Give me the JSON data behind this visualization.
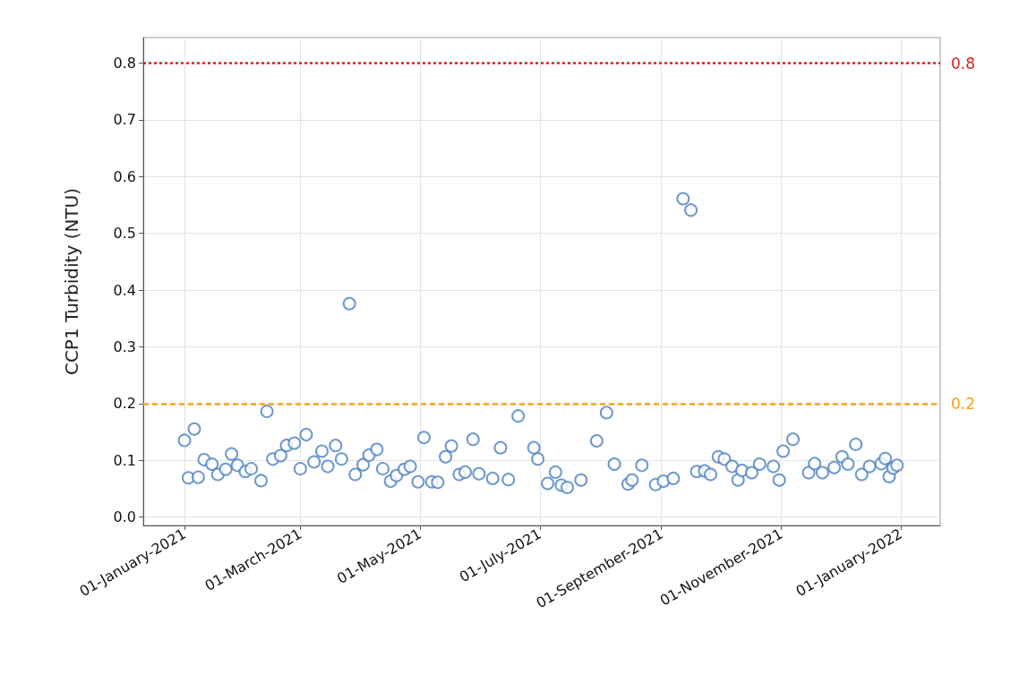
{
  "chart_data": {
    "type": "scatter",
    "ylabel": "CCP1 Turbidity (NTU)",
    "x": [
      "2021-01-01",
      "2021-01-03",
      "2021-01-06",
      "2021-01-08",
      "2021-01-11",
      "2021-01-15",
      "2021-01-18",
      "2021-01-22",
      "2021-01-25",
      "2021-01-28",
      "2021-02-01",
      "2021-02-04",
      "2021-02-09",
      "2021-02-12",
      "2021-02-15",
      "2021-02-19",
      "2021-02-22",
      "2021-02-26",
      "2021-03-01",
      "2021-03-04",
      "2021-03-08",
      "2021-03-12",
      "2021-03-15",
      "2021-03-19",
      "2021-03-22",
      "2021-03-26",
      "2021-03-29",
      "2021-04-02",
      "2021-04-05",
      "2021-04-09",
      "2021-04-12",
      "2021-04-16",
      "2021-04-19",
      "2021-04-23",
      "2021-04-26",
      "2021-04-30",
      "2021-05-03",
      "2021-05-07",
      "2021-05-10",
      "2021-05-14",
      "2021-05-17",
      "2021-05-21",
      "2021-05-24",
      "2021-05-28",
      "2021-05-31",
      "2021-06-07",
      "2021-06-11",
      "2021-06-15",
      "2021-06-20",
      "2021-06-28",
      "2021-06-30",
      "2021-07-05",
      "2021-07-09",
      "2021-07-12",
      "2021-07-15",
      "2021-07-22",
      "2021-07-30",
      "2021-08-04",
      "2021-08-08",
      "2021-08-15",
      "2021-08-17",
      "2021-08-22",
      "2021-08-29",
      "2021-09-02",
      "2021-09-07",
      "2021-09-12",
      "2021-09-16",
      "2021-09-19",
      "2021-09-23",
      "2021-09-26",
      "2021-09-30",
      "2021-10-03",
      "2021-10-07",
      "2021-10-10",
      "2021-10-12",
      "2021-10-17",
      "2021-10-21",
      "2021-10-28",
      "2021-10-31",
      "2021-11-02",
      "2021-11-07",
      "2021-11-15",
      "2021-11-18",
      "2021-11-22",
      "2021-11-28",
      "2021-12-02",
      "2021-12-05",
      "2021-12-09",
      "2021-12-12",
      "2021-12-16",
      "2021-12-22",
      "2021-12-24",
      "2021-12-26",
      "2021-12-28",
      "2021-12-30"
    ],
    "series": [
      {
        "color": "#4a7fc1",
        "values": [
          0.135,
          0.069,
          0.155,
          0.07,
          0.101,
          0.093,
          0.075,
          0.084,
          0.111,
          0.091,
          0.08,
          0.085,
          0.064,
          0.186,
          0.102,
          0.108,
          0.126,
          0.13,
          0.085,
          0.145,
          0.097,
          0.116,
          0.089,
          0.126,
          0.102,
          0.376,
          0.075,
          0.092,
          0.109,
          0.119,
          0.085,
          0.063,
          0.073,
          0.084,
          0.089,
          0.062,
          0.14,
          0.062,
          0.061,
          0.106,
          0.125,
          0.075,
          0.079,
          0.137,
          0.076,
          0.068,
          0.122,
          0.066,
          0.178,
          0.122,
          0.102,
          0.059,
          0.079,
          0.056,
          0.052,
          0.065,
          0.134,
          0.184,
          0.093,
          0.058,
          0.065,
          0.091,
          0.057,
          0.063,
          0.068,
          0.561,
          0.541,
          0.08,
          0.081,
          0.075,
          0.106,
          0.102,
          0.089,
          0.065,
          0.082,
          0.078,
          0.093,
          0.089,
          0.065,
          0.116,
          0.137,
          0.078,
          0.094,
          0.078,
          0.087,
          0.106,
          0.093,
          0.128,
          0.075,
          0.089,
          0.094,
          0.103,
          0.071,
          0.086,
          0.091
        ]
      }
    ],
    "xlim": [
      "2020-12-11",
      "2022-01-21"
    ],
    "xticks": [
      {
        "value": "2021-01-01",
        "label": "01-January-2021"
      },
      {
        "value": "2021-03-01",
        "label": "01-March-2021"
      },
      {
        "value": "2021-05-01",
        "label": "01-May-2021"
      },
      {
        "value": "2021-07-01",
        "label": "01-July-2021"
      },
      {
        "value": "2021-09-01",
        "label": "01-September-2021"
      },
      {
        "value": "2021-11-01",
        "label": "01-November-2021"
      },
      {
        "value": "2022-01-01",
        "label": "01-January-2022"
      }
    ],
    "ylim": [
      -0.015,
      0.845
    ],
    "yticks": [
      {
        "value": 0,
        "label": "0.0"
      },
      {
        "value": 0.1,
        "label": "0.1"
      },
      {
        "value": 0.2,
        "label": "0.2"
      },
      {
        "value": 0.3,
        "label": "0.3"
      },
      {
        "value": 0.4,
        "label": "0.4"
      },
      {
        "value": 0.5,
        "label": "0.5"
      },
      {
        "value": 0.6,
        "label": "0.6"
      },
      {
        "value": 0.7,
        "label": "0.7"
      },
      {
        "value": 0.8,
        "label": "0.8"
      }
    ],
    "ref_lines": [
      {
        "axis": "y",
        "value": 0.8,
        "label": "0.8",
        "color": "#d62020",
        "line_style": "dotted"
      },
      {
        "axis": "y",
        "value": 0.2,
        "label": "0.2",
        "color": "#f5a31a",
        "line_style": "dashed"
      }
    ],
    "grid": true,
    "marker": "circle"
  }
}
